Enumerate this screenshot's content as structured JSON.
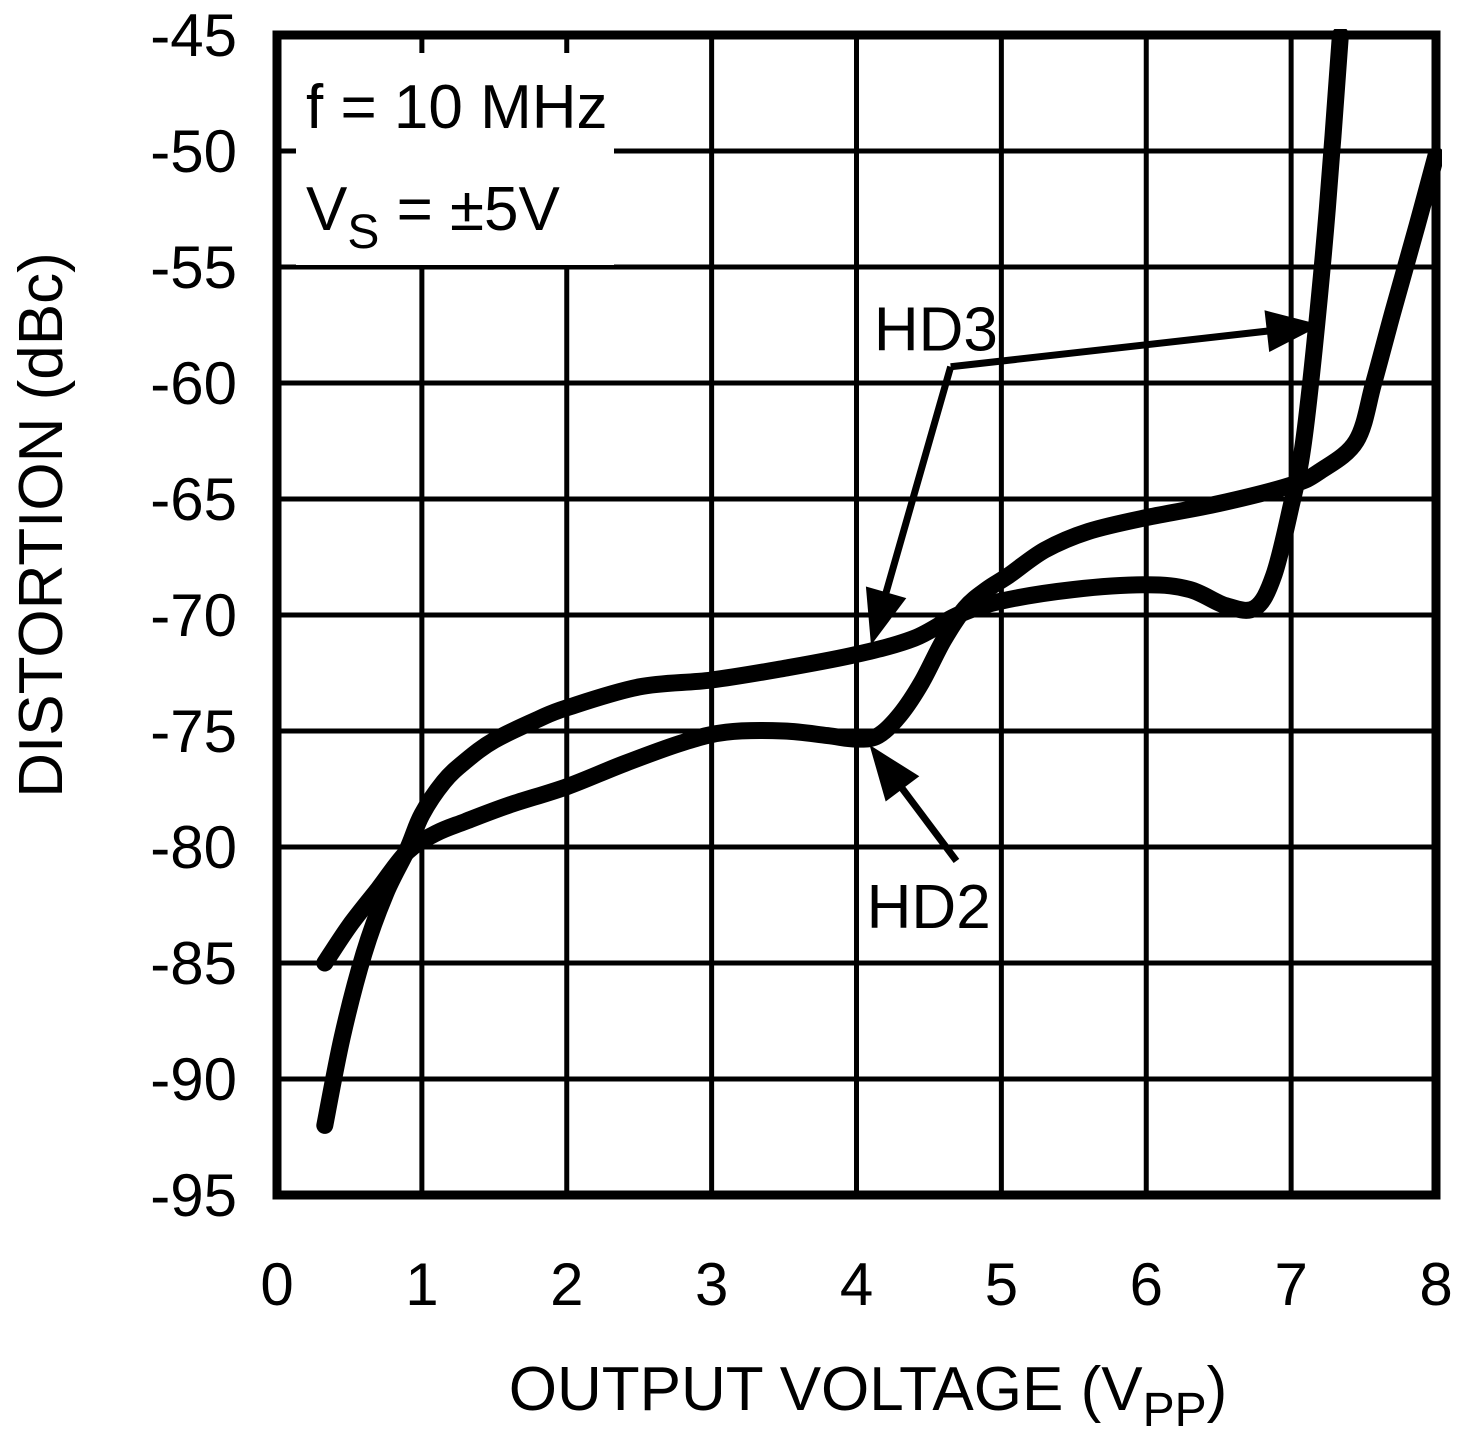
{
  "colors": {
    "ink": "#000000",
    "paper": "#ffffff"
  },
  "chart_data": {
    "type": "line",
    "title": "",
    "ylabel": "DISTORTION (dBc)",
    "xlabel_segments": [
      {
        "t": "OUTPUT VOLTAGE (V"
      },
      {
        "t": "PP",
        "sub": true
      },
      {
        "t": ")"
      }
    ],
    "x_range": [
      0,
      8
    ],
    "y_range": [
      -95,
      -45
    ],
    "x_ticks": [
      0,
      1,
      2,
      3,
      4,
      5,
      6,
      7,
      8
    ],
    "y_ticks": [
      -45,
      -50,
      -55,
      -60,
      -65,
      -70,
      -75,
      -80,
      -85,
      -90,
      -95
    ],
    "grid": true,
    "legend_position": "none",
    "conditions_note": [
      [
        {
          "t": "f = 10 MHz"
        }
      ],
      [
        {
          "t": "V"
        },
        {
          "t": "S",
          "sub": true
        },
        {
          "t": " = ±5V"
        }
      ]
    ],
    "series": [
      {
        "name": "HD3",
        "points": [
          [
            0.33,
            -92
          ],
          [
            0.45,
            -88.2
          ],
          [
            0.6,
            -84.6
          ],
          [
            0.75,
            -82.0
          ],
          [
            0.9,
            -80.1
          ],
          [
            1.0,
            -78.6
          ],
          [
            1.15,
            -77.2
          ],
          [
            1.3,
            -76.3
          ],
          [
            1.5,
            -75.4
          ],
          [
            1.8,
            -74.5
          ],
          [
            2.0,
            -74.0
          ],
          [
            2.5,
            -73.1
          ],
          [
            3.0,
            -72.8
          ],
          [
            3.5,
            -72.3
          ],
          [
            4.0,
            -71.7
          ],
          [
            4.4,
            -71.0
          ],
          [
            4.7,
            -70.0
          ],
          [
            5.0,
            -69.4
          ],
          [
            5.5,
            -68.9
          ],
          [
            6.0,
            -68.7
          ],
          [
            6.3,
            -68.9
          ],
          [
            6.55,
            -69.6
          ],
          [
            6.75,
            -69.7
          ],
          [
            6.88,
            -68.3
          ],
          [
            7.0,
            -65.3
          ],
          [
            7.08,
            -62.8
          ],
          [
            7.16,
            -58.5
          ],
          [
            7.25,
            -52.5
          ],
          [
            7.34,
            -45.0
          ]
        ]
      },
      {
        "name": "HD2",
        "points": [
          [
            0.33,
            -85.0
          ],
          [
            0.5,
            -83.4
          ],
          [
            0.7,
            -81.8
          ],
          [
            0.9,
            -80.2
          ],
          [
            1.1,
            -79.4
          ],
          [
            1.3,
            -78.9
          ],
          [
            1.6,
            -78.2
          ],
          [
            2.0,
            -77.4
          ],
          [
            2.4,
            -76.4
          ],
          [
            2.8,
            -75.5
          ],
          [
            3.1,
            -75.05
          ],
          [
            3.5,
            -75.0
          ],
          [
            3.8,
            -75.2
          ],
          [
            4.0,
            -75.35
          ],
          [
            4.15,
            -75.2
          ],
          [
            4.3,
            -74.3
          ],
          [
            4.45,
            -72.9
          ],
          [
            4.6,
            -71.1
          ],
          [
            4.75,
            -69.7
          ],
          [
            4.9,
            -68.9
          ],
          [
            5.05,
            -68.3
          ],
          [
            5.3,
            -67.2
          ],
          [
            5.6,
            -66.4
          ],
          [
            6.0,
            -65.8
          ],
          [
            6.5,
            -65.2
          ],
          [
            7.0,
            -64.4
          ],
          [
            7.2,
            -63.8
          ],
          [
            7.45,
            -62.5
          ],
          [
            7.57,
            -60.0
          ],
          [
            7.7,
            -57.0
          ],
          [
            7.87,
            -53.2
          ],
          [
            8.0,
            -50.2
          ]
        ]
      }
    ],
    "annotations": {
      "series_labels": [
        {
          "series": "HD3",
          "x": 4.12,
          "y": -58.6
        },
        {
          "series": "HD2",
          "x": 4.07,
          "y": -83.5
        }
      ],
      "arrows": [
        {
          "name": "hd3-arrow-to-steep-segment",
          "from": [
            4.65,
            -59.3
          ],
          "to": [
            7.21,
            -57.5
          ]
        },
        {
          "name": "hd3-arrow-to-midband-segment",
          "from": [
            4.65,
            -59.3
          ],
          "to": [
            4.1,
            -71.3
          ]
        },
        {
          "name": "hd2-arrow-to-curve",
          "from": [
            4.69,
            -80.6
          ],
          "to": [
            4.09,
            -75.6
          ]
        }
      ]
    }
  }
}
